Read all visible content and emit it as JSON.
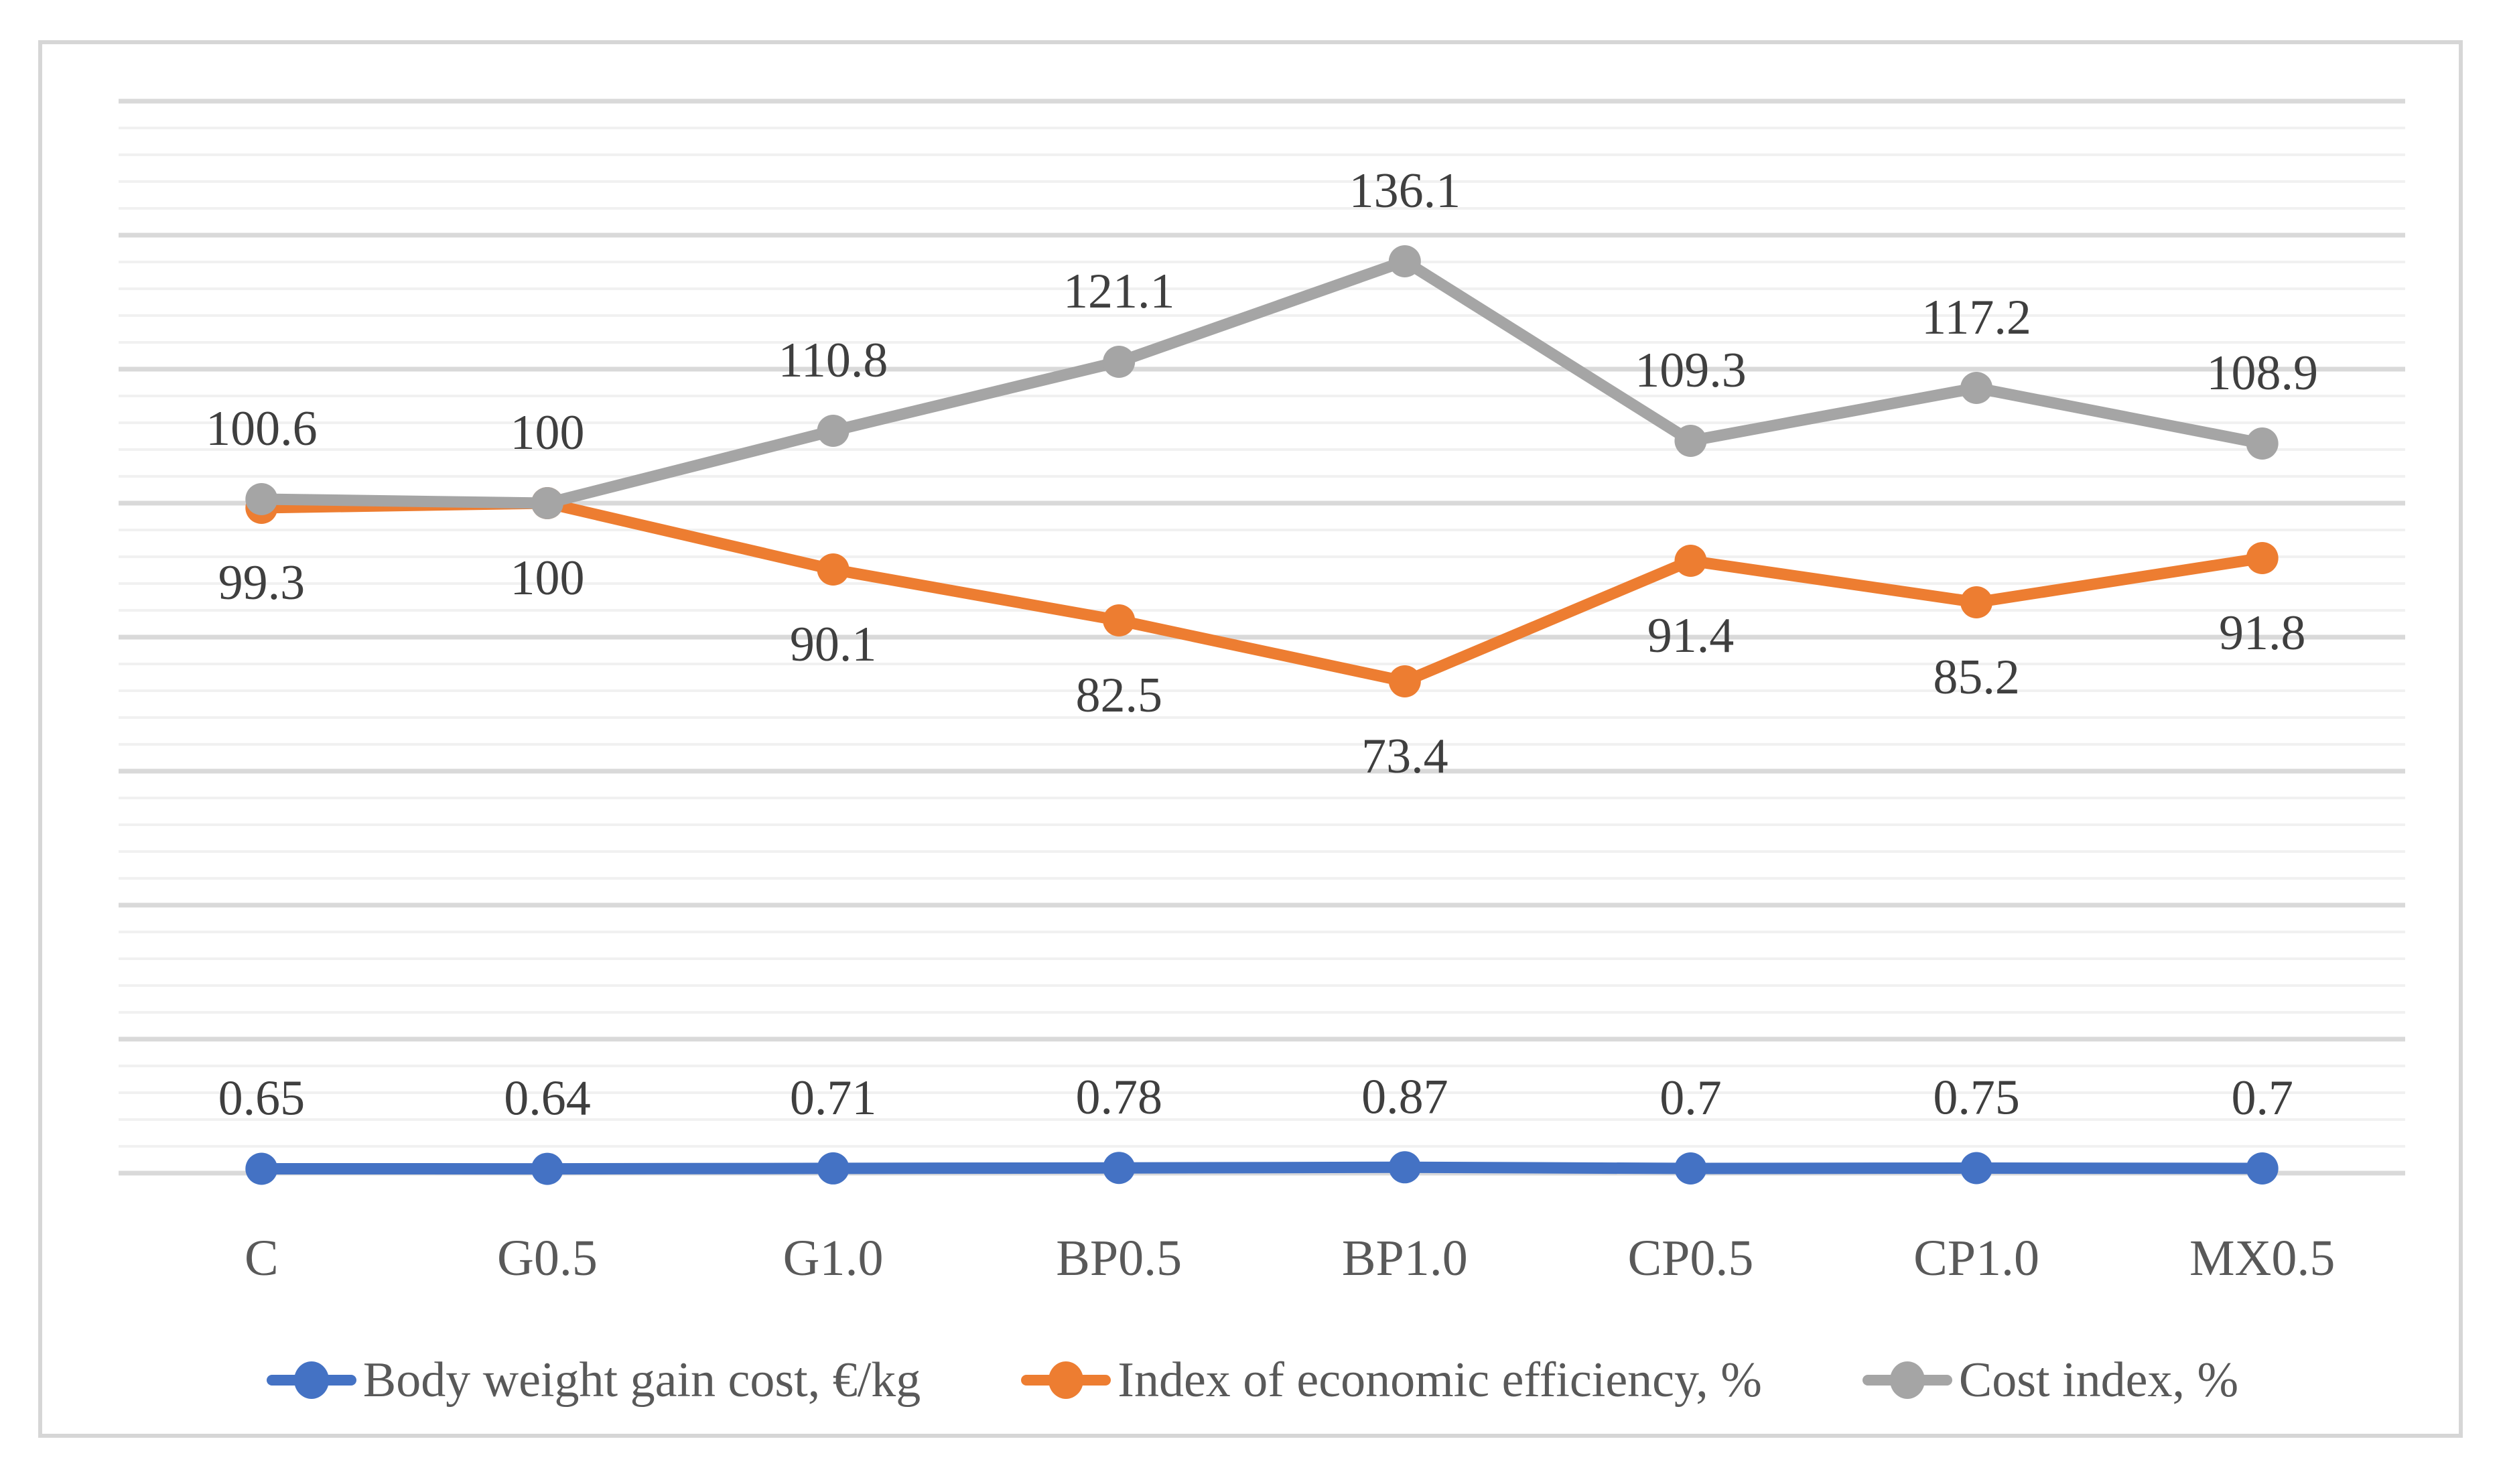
{
  "chart_data": {
    "type": "line",
    "categories": [
      "C",
      "G0.5",
      "G1.0",
      "BP0.5",
      "BP1.0",
      "CP0.5",
      "CP1.0",
      "MX0.5"
    ],
    "series": [
      {
        "name": "Body weight gain cost, €/kg",
        "color": "#4472C4",
        "values": [
          0.65,
          0.64,
          0.71,
          0.78,
          0.87,
          0.7,
          0.75,
          0.7
        ],
        "labels": [
          "0.65",
          "0.64",
          "0.71",
          "0.78",
          "0.87",
          "0.7",
          "0.75",
          "0.7"
        ],
        "label_position": "above"
      },
      {
        "name": "Index of economic efficiency, %",
        "color": "#ED7D31",
        "values": [
          99.3,
          100,
          90.1,
          82.5,
          73.4,
          91.4,
          85.2,
          91.8
        ],
        "labels": [
          "99.3",
          "100",
          "90.1",
          "82.5",
          "73.4",
          "91.4",
          "85.2",
          "91.8"
        ],
        "label_position": "below"
      },
      {
        "name": "Cost index, %",
        "color": "#A5A5A5",
        "values": [
          100.6,
          100,
          110.8,
          121.1,
          136.1,
          109.3,
          117.2,
          108.9
        ],
        "labels": [
          "100.6",
          "100",
          "110.8",
          "121.1",
          "136.1",
          "109.3",
          "117.2",
          "108.9"
        ],
        "label_position": "above"
      }
    ],
    "xlabel": "",
    "ylabel": "",
    "ylim": [
      0,
      160
    ],
    "y_major_unit": 20,
    "y_minor_unit": 4,
    "y_axis_labels_shown": false,
    "grid": "horizontal",
    "data_labels_shown": true,
    "legend_position": "bottom",
    "colors": {
      "minor_gridline": "#F1F1F1",
      "major_gridline": "#D9D9D9",
      "data_label_text": "#3F3F3F",
      "category_text": "#595959",
      "legend_text": "#595959",
      "frame_border": "#D6D6D6",
      "background": "#FFFFFF"
    }
  }
}
